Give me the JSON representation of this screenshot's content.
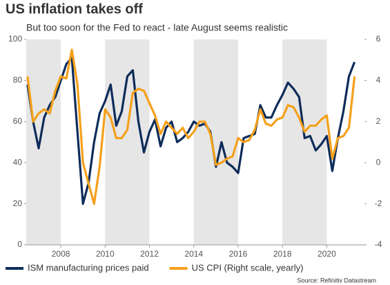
{
  "chart_data": {
    "type": "line",
    "title": "US inflation takes off",
    "subtitle": "But too soon for the Fed to react - late August seems realistic",
    "source": "Source: Refinitiv Datastream",
    "x": [
      2006.5,
      2006.75,
      2007.0,
      2007.25,
      2007.5,
      2007.75,
      2008.0,
      2008.25,
      2008.5,
      2008.75,
      2009.0,
      2009.25,
      2009.5,
      2009.75,
      2010.0,
      2010.25,
      2010.5,
      2010.75,
      2011.0,
      2011.25,
      2011.5,
      2011.75,
      2012.0,
      2012.25,
      2012.5,
      2012.75,
      2013.0,
      2013.25,
      2013.5,
      2013.75,
      2014.0,
      2014.25,
      2014.5,
      2014.75,
      2015.0,
      2015.25,
      2015.5,
      2015.75,
      2016.0,
      2016.25,
      2016.5,
      2016.75,
      2017.0,
      2017.25,
      2017.5,
      2017.75,
      2018.0,
      2018.25,
      2018.5,
      2018.75,
      2019.0,
      2019.25,
      2019.5,
      2019.75,
      2020.0,
      2020.25,
      2020.5,
      2020.75,
      2021.0,
      2021.25
    ],
    "series": [
      {
        "name": "ISM manufacturing prices paid",
        "color": "#0d2c5a",
        "values": [
          78,
          60,
          47,
          62,
          68,
          72,
          80,
          88,
          91,
          55,
          20,
          30,
          50,
          64,
          70,
          78,
          58,
          65,
          82,
          85,
          60,
          45,
          55,
          61,
          48,
          57,
          60,
          50,
          52,
          55,
          60,
          58,
          59,
          55,
          38,
          50,
          40,
          38,
          35,
          52,
          53,
          54,
          68,
          62,
          62,
          68,
          73,
          79,
          76,
          72,
          52,
          53,
          46,
          49,
          53,
          36,
          52,
          65,
          82,
          89
        ]
      },
      {
        "name": "US CPI (Right scale, yearly)",
        "color": "#f5a01a",
        "axis": "y2",
        "values": [
          4.2,
          2.0,
          2.4,
          2.6,
          2.4,
          3.5,
          4.2,
          4.1,
          5.5,
          3.8,
          0.0,
          -1.0,
          -2.0,
          -0.2,
          2.6,
          2.2,
          1.2,
          1.2,
          1.6,
          3.4,
          3.6,
          3.5,
          2.9,
          2.3,
          1.4,
          2.0,
          1.7,
          1.4,
          1.7,
          1.2,
          1.5,
          2.0,
          2.0,
          1.4,
          -0.1,
          0.0,
          0.2,
          0.3,
          1.2,
          1.0,
          1.1,
          1.6,
          2.6,
          1.9,
          1.8,
          2.1,
          2.2,
          2.8,
          2.7,
          2.2,
          1.5,
          1.8,
          1.8,
          2.1,
          2.3,
          0.2,
          1.2,
          1.3,
          1.7,
          4.2
        ]
      }
    ],
    "xlim": [
      2006.44,
      2021.7
    ],
    "xticks": [
      2008,
      2010,
      2012,
      2014,
      2016,
      2018,
      2020
    ],
    "ylim": [
      0,
      100
    ],
    "yticks": [
      0,
      20,
      40,
      60,
      80,
      100
    ],
    "y2lim": [
      -4,
      6
    ],
    "y2ticks": [
      -4,
      -2,
      0,
      2,
      4,
      6
    ],
    "legend": "bottom"
  }
}
